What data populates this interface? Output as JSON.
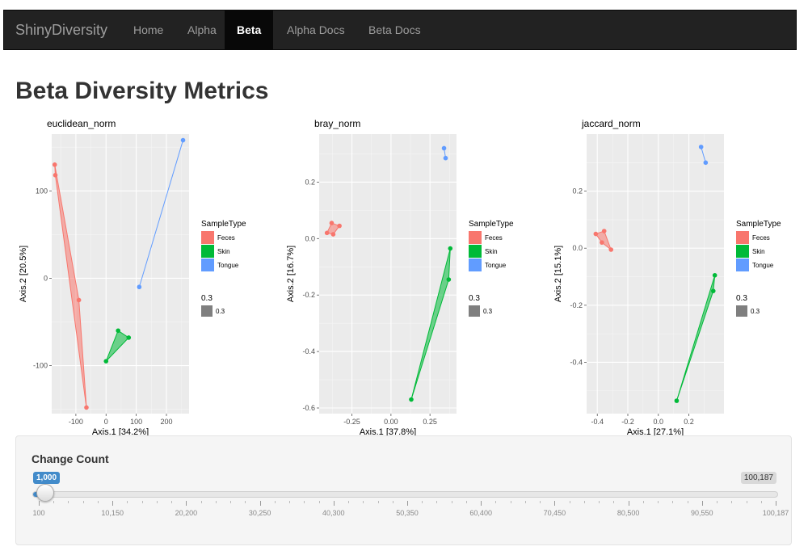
{
  "navbar": {
    "brand": "ShinyDiversity",
    "items": [
      "Home",
      "Alpha",
      "Beta",
      "Alpha Docs",
      "Beta Docs"
    ],
    "active": "Beta"
  },
  "page": {
    "title": "Beta Diversity Metrics"
  },
  "colors": {
    "feces": "#F8766D",
    "skin": "#00BA38",
    "tongue": "#619CFF",
    "panel_bg": "#EBEBEB",
    "size_key": "#7F7F7F",
    "navbar_bg": "#222222",
    "slider_accent": "#428bca"
  },
  "legend": {
    "title": "SampleType",
    "items": [
      "Feces",
      "Skin",
      "Tongue"
    ],
    "size_title": "0.3",
    "size_item": "0.3"
  },
  "chart_data": [
    {
      "type": "scatter",
      "title": "euclidean_norm",
      "xlabel": "Axis.1   [34.2%]",
      "ylabel": "Axis.2   [20.5%]",
      "xlim": [
        -180,
        275
      ],
      "ylim": [
        -155,
        165
      ],
      "xticks": [
        -100,
        0,
        100,
        200
      ],
      "xtick_labels": [
        "-100",
        "0",
        "100",
        "200"
      ],
      "yticks": [
        -100,
        0,
        100
      ],
      "ytick_labels": [
        "-100",
        "0",
        "100"
      ],
      "series": [
        {
          "name": "Feces",
          "hull": true,
          "points": [
            [
              -170,
              130
            ],
            [
              -168,
              118
            ],
            [
              -90,
              -25
            ],
            [
              -65,
              -148
            ]
          ]
        },
        {
          "name": "Skin",
          "hull": true,
          "points": [
            [
              0,
              -95
            ],
            [
              40,
              -60
            ],
            [
              75,
              -68
            ]
          ]
        },
        {
          "name": "Tongue",
          "hull": true,
          "points": [
            [
              110,
              -10
            ],
            [
              255,
              158
            ]
          ]
        }
      ]
    },
    {
      "type": "scatter",
      "title": "bray_norm",
      "xlabel": "Axis.1   [37.8%]",
      "ylabel": "Axis.2   [16.7%]",
      "xlim": [
        -0.46,
        0.42
      ],
      "ylim": [
        -0.62,
        0.37
      ],
      "xticks": [
        -0.25,
        0,
        0.25
      ],
      "xtick_labels": [
        "-0.25",
        "0.00",
        "0.25"
      ],
      "yticks": [
        -0.6,
        -0.4,
        -0.2,
        0.0,
        0.2
      ],
      "ytick_labels": [
        "-0.6",
        "-0.4",
        "-0.2",
        "0.0",
        "0.2"
      ],
      "series": [
        {
          "name": "Feces",
          "hull": true,
          "points": [
            [
              -0.41,
              0.02
            ],
            [
              -0.38,
              0.055
            ],
            [
              -0.33,
              0.045
            ],
            [
              -0.37,
              0.015
            ]
          ]
        },
        {
          "name": "Skin",
          "hull": true,
          "points": [
            [
              0.13,
              -0.57
            ],
            [
              0.37,
              -0.145
            ],
            [
              0.38,
              -0.035
            ]
          ]
        },
        {
          "name": "Tongue",
          "hull": true,
          "points": [
            [
              0.34,
              0.32
            ],
            [
              0.35,
              0.285
            ]
          ]
        }
      ]
    },
    {
      "type": "scatter",
      "title": "jaccard_norm",
      "xlabel": "Axis.1   [27.1%]",
      "ylabel": "Axis.2   [15.1%]",
      "xlim": [
        -0.47,
        0.43
      ],
      "ylim": [
        -0.58,
        0.4
      ],
      "xticks": [
        -0.4,
        -0.2,
        0.0,
        0.2
      ],
      "xtick_labels": [
        "-0.4",
        "-0.2",
        "0.0",
        "0.2"
      ],
      "yticks": [
        -0.4,
        -0.2,
        0.0,
        0.2
      ],
      "ytick_labels": [
        "-0.4",
        "-0.2",
        "0.0",
        "0.2"
      ],
      "series": [
        {
          "name": "Feces",
          "hull": true,
          "points": [
            [
              -0.41,
              0.05
            ],
            [
              -0.355,
              0.06
            ],
            [
              -0.37,
              0.02
            ],
            [
              -0.31,
              -0.005
            ]
          ]
        },
        {
          "name": "Skin",
          "hull": true,
          "points": [
            [
              0.12,
              -0.535
            ],
            [
              0.36,
              -0.15
            ],
            [
              0.37,
              -0.095
            ]
          ]
        },
        {
          "name": "Tongue",
          "hull": true,
          "points": [
            [
              0.28,
              0.355
            ],
            [
              0.31,
              0.3
            ]
          ]
        }
      ]
    }
  ],
  "slider": {
    "label": "Change Count",
    "min": 100,
    "max": 100187,
    "value": 1000,
    "value_label": "1,000",
    "max_label": "100,187",
    "tick_labels": [
      "100",
      "10,150",
      "20,200",
      "30,250",
      "40,300",
      "50,350",
      "60,400",
      "70,450",
      "80,500",
      "90,550",
      "100,187"
    ]
  }
}
